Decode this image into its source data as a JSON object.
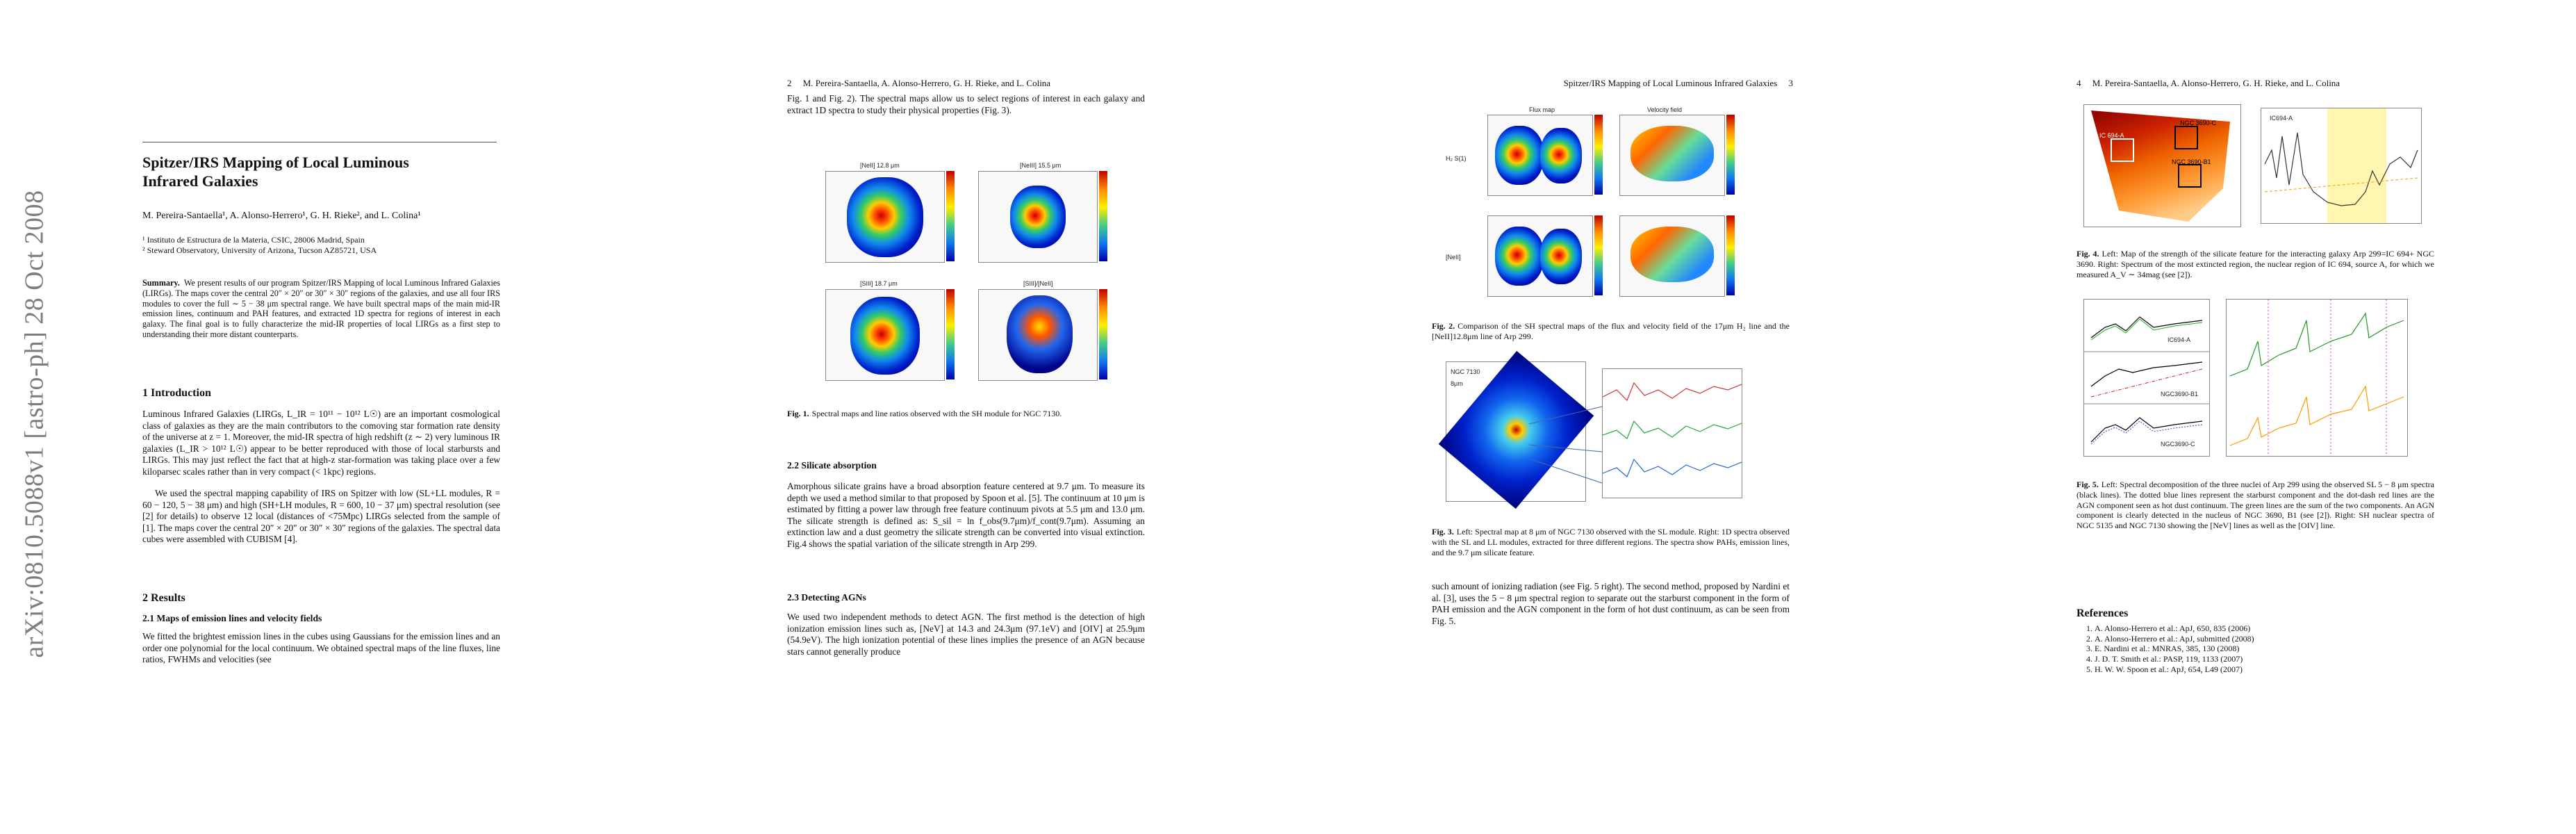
{
  "arxiv_id": "arXiv:0810.5088v1  [astro-ph]  28 Oct 2008",
  "page1": {
    "title": "Spitzer/IRS Mapping of Local Luminous Infrared Galaxies",
    "authors": "M. Pereira-Santaella¹, A. Alonso-Herrero¹, G. H. Rieke², and L. Colina¹",
    "affil1": "¹  Instituto de Estructura de la Materia, CSIC, 28006 Madrid, Spain",
    "affil2": "²  Steward Observatory, University of Arizona, Tucson AZ85721, USA",
    "abstract_label": "Summary.",
    "abstract": "We present results of our program Spitzer/IRS Mapping of local Luminous Infrared Galaxies (LIRGs). The maps cover the central 20″ × 20″ or 30″ × 30″ regions of the galaxies, and use all four IRS modules to cover the full ∼ 5 − 38 μm spectral range. We have built spectral maps of the main mid-IR emission lines, continuum and PAH features, and extracted 1D spectra for regions of interest in each galaxy. The final goal is to fully characterize the mid-IR properties of local LIRGs as a first step to understanding their more distant counterparts.",
    "sec1": "1 Introduction",
    "intro1": "Luminous Infrared Galaxies (LIRGs, L_IR = 10¹¹ − 10¹² L☉) are an important cosmological class of galaxies as they are the main contributors to the comoving star formation rate density of the universe at z = 1. Moreover, the mid-IR spectra of high redshift (z ∼ 2) very luminous IR galaxies (L_IR > 10¹² L☉) appear to be better reproduced with those of local starbursts and LIRGs. This may just reflect the fact that at high-z star-formation was taking place over a few kiloparsec scales rather than in very compact (< 1kpc) regions.",
    "intro2": "We used the spectral mapping capability of IRS on Spitzer with low (SL+LL modules, R = 60 − 120, 5 − 38 μm) and high (SH+LH modules, R = 600, 10 − 37 μm) spectral resolution (see [2] for details) to observe 12 local (distances of <75Mpc) LIRGs selected from the sample of [1]. The maps cover the central 20″ × 20″ or 30″ × 30″ regions of the galaxies. The spectral data cubes were assembled with CUBISM [4].",
    "sec2": "2 Results",
    "sub21": "2.1 Maps of emission lines and velocity fields",
    "res1": "We fitted the brightest emission lines in the cubes using Gaussians for the emission lines and an order one polynomial for the local continuum. We obtained spectral maps of the line fluxes, line ratios, FWHMs and velocities (see"
  },
  "page2": {
    "header_num": "2",
    "header_text": "M. Pereira-Santaella, A. Alonso-Herrero, G. H. Rieke, and L. Colina",
    "cont": "Fig. 1 and Fig. 2). The spectral maps allow us to select regions of interest in each galaxy and extract 1D spectra to study their physical properties (Fig. 3).",
    "panel_titles": [
      "[NeII] 12.8 μm",
      "[NeIII] 15.5 μm",
      "[SIII] 18.7 μm",
      "[SIII]/[NeII]"
    ],
    "fig1_label": "Fig. 1.",
    "fig1_caption": "Spectral maps and line ratios observed with the SH module for NGC 7130.",
    "sub22": "2.2 Silicate absorption",
    "sil": "Amorphous silicate grains have a broad absorption feature centered at 9.7 μm. To measure its depth we used a method similar to that proposed by Spoon et al. [5]. The continuum at 10 μm is estimated by fitting a power law through free feature continuum pivots at 5.5 μm and 13.0 μm. The silicate strength is defined as: S_sil = ln f_obs(9.7μm)/f_cont(9.7μm). Assuming an extinction law and a dust geometry the silicate strength can be converted into visual extinction. Fig.4 shows the spatial variation of the silicate strength in Arp 299.",
    "sub23": "2.3 Detecting AGNs",
    "agn": "We used two independent methods to detect AGN. The first method is the detection of high ionization emission lines such as, [NeV] at 14.3 and 24.3μm (97.1eV) and [OIV] at 25.9μm (54.9eV). The high ionization potential of these lines implies the presence of an AGN because stars cannot generally produce"
  },
  "page3": {
    "header_text": "Spitzer/IRS Mapping of Local Luminous Infrared Galaxies",
    "header_num": "3",
    "col_titles": [
      "Flux map",
      "Velocity field"
    ],
    "row_labels": [
      "H₂ S(1)",
      "[NeII]"
    ],
    "fig2_label": "Fig. 2.",
    "fig2_caption": "Comparison of the SH spectral maps of the flux and velocity field of the 17μm H₂ line and the [NeII]12.8μm line of Arp 299.",
    "fig3_map_label": "NGC 7130 8μm",
    "fig3_label": "Fig. 3.",
    "fig3_caption": "Left: Spectral map at 8 μm of NGC 7130 observed with the SL module. Right: 1D spectra observed with the SL and LL modules, extracted for three different regions. The spectra show PAHs, emission lines, and the 9.7 μm silicate feature.",
    "cont": "such amount of ionizing radiation (see Fig. 5 right). The second method, proposed by Nardini et al. [3], uses the 5 − 8 μm spectral region to separate out the starburst component in the form of PAH emission and the AGN component in the form of hot dust continuum, as can be seen from Fig. 5."
  },
  "page4": {
    "header_num": "4",
    "header_text": "M. Pereira-Santaella, A. Alonso-Herrero, G. H. Rieke, and L. Colina",
    "map_labels": [
      "IC 694-A",
      "NGC 3690-C",
      "NGC 3690-B1"
    ],
    "spec_label": "IC694-A",
    "fig4_label": "Fig. 4.",
    "fig4_caption": "Left: Map of the strength of the silicate feature for the interacting galaxy Arp 299=IC 694+ NGC 3690. Right: Spectrum of the most extincted region, the nuclear region of IC 694, source A, for which we measured A_V ∼ 34mag (see [2]).",
    "fig5_names": [
      "IC694-A",
      "NGC3690-B1",
      "NGC3690-C"
    ],
    "fig5_label": "Fig. 5.",
    "fig5_caption": "Left: Spectral decomposition of the three nuclei of Arp 299 using the observed SL 5 − 8 μm spectra (black lines). The dotted blue lines represent the starburst component and the dot-dash red lines are the AGN component seen as hot dust continuum. The green lines are the sum of the two components. An AGN component is clearly detected in the nucleus of NGC 3690, B1 (see [2]). Right: SH nuclear spectra of NGC 5135 and NGC 7130 showing the [NeV] lines as well as the [OIV] line.",
    "refs_title": "References",
    "refs": [
      "A. Alonso-Herrero et al.: ApJ, 650, 835 (2006)",
      "A. Alonso-Herrero et al.: ApJ, submitted (2008)",
      "E. Nardini et al.: MNRAS, 385, 130 (2008)",
      "J. D. T. Smith et al.: PASP, 119, 1133 (2007)",
      "H. W. W. Spoon et al.: ApJ, 654, L49 (2007)"
    ]
  },
  "colors": {
    "heat_core": "#c00000",
    "heat_outer": "#000099",
    "shade": "#fff6b0",
    "green": "#229922",
    "orange": "#ff9900"
  }
}
